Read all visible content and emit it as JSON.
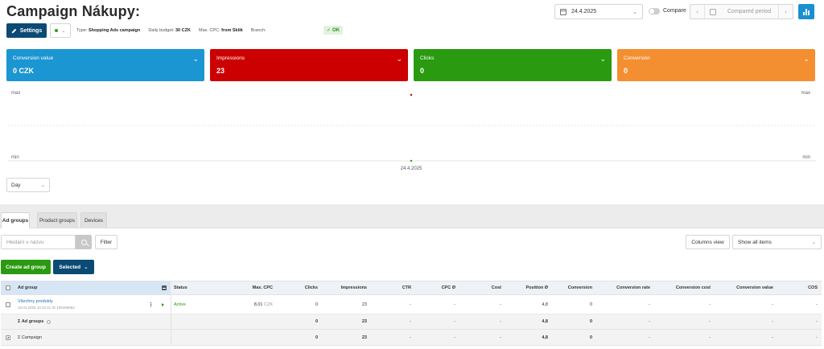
{
  "header": {
    "title": "Campaign Nákupy:",
    "date": "24.4.2025",
    "compare_label": "Compare",
    "compared_period_placeholder": "Compared period"
  },
  "toolbar": {
    "settings_label": "Settings",
    "meta": {
      "type_label": "Type:",
      "type_value": "Shopping Ads campaign",
      "budget_label": "Daily budget:",
      "budget_value": "30 CZK",
      "cpc_label": "Max. CPC:",
      "cpc_value": "from Sklik",
      "branch_label": "Branch:"
    },
    "ok_badge": "OK"
  },
  "kpis": [
    {
      "label": "Conversion value",
      "value": "0 CZK",
      "color": "#1b96d2"
    },
    {
      "label": "Impressions",
      "value": "23",
      "color": "#cc0000"
    },
    {
      "label": "Clicks",
      "value": "0",
      "color": "#2a9a10"
    },
    {
      "label": "Conversion",
      "value": "0",
      "color": "#f38f30"
    }
  ],
  "chart": {
    "max_label": "max",
    "min_label": "min",
    "x_label": "24.4.2025"
  },
  "chart_data": {
    "type": "line",
    "x": [
      "24.4.2025"
    ],
    "series": [
      {
        "name": "Impressions",
        "values": [
          23
        ],
        "color": "#cc0000"
      },
      {
        "name": "Clicks",
        "values": [
          0
        ],
        "color": "#2a9a10"
      }
    ]
  },
  "granularity": "Day",
  "tabs": [
    {
      "label": "Ad groups",
      "active": true
    },
    {
      "label": "Product groups",
      "active": false
    },
    {
      "label": "Devices",
      "active": false
    }
  ],
  "search": {
    "placeholder": "Hledání v názvu"
  },
  "filter_label": "Filter",
  "columns_view_label": "Columns view",
  "show_select_value": "Show all items",
  "create_label": "Create ad group",
  "selected_label": "Selected",
  "table": {
    "headers": {
      "ad_group": "Ad group",
      "status": "Status",
      "max_cpc": "Max. CPC",
      "clicks": "Clicks",
      "impressions": "Impressions",
      "ctr": "CTR",
      "cpc": "CPC Ø",
      "cost": "Cost",
      "position": "Position Ø",
      "conversion": "Conversion",
      "conversion_rate": "Conversion rate",
      "conversion_cost": "Conversion cost",
      "conversion_value": "Conversion value",
      "cos": "COS"
    },
    "row": {
      "name": "Všechny produkty",
      "sub": "15.04.2025 10:10:41 ID 155486862",
      "status": "Active",
      "max_cpc": "8,01",
      "currency": "CZK",
      "clicks": "0",
      "impressions": "23",
      "ctr": "-",
      "cpc": "-",
      "cost": "-",
      "position": "4,8",
      "conversion": "0",
      "conversion_rate": "-",
      "conversion_cost": "-",
      "conversion_value": "-",
      "cos": "-"
    },
    "sum_ad_groups": {
      "label": "Σ Ad groups",
      "clicks": "0",
      "impressions": "23",
      "ctr": "-",
      "cpc": "-",
      "cost": "-",
      "position": "4,8",
      "conversion": "0",
      "conversion_rate": "-",
      "conversion_cost": "-",
      "conversion_value": "-",
      "cos": "-"
    },
    "sum_campaign": {
      "label": "Σ Campaign",
      "clicks": "0",
      "impressions": "23",
      "ctr": "-",
      "cpc": "-",
      "cost": "-",
      "position": "4,8",
      "conversion": "0",
      "conversion_rate": "-",
      "conversion_cost": "-",
      "conversion_value": "-",
      "cos": "-"
    }
  }
}
